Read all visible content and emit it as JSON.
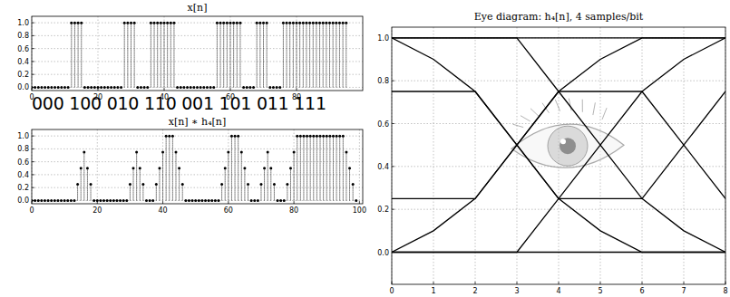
{
  "chart_data": [
    {
      "type": "stem",
      "title": "x[n]",
      "annotation": "000 100 010 110 001 101 011 111",
      "x": [
        0,
        1,
        2,
        3,
        4,
        5,
        6,
        7,
        8,
        9,
        10,
        11,
        12,
        13,
        14,
        15,
        16,
        17,
        18,
        19,
        20,
        21,
        22,
        23,
        24,
        25,
        26,
        27,
        28,
        29,
        30,
        31,
        32,
        33,
        34,
        35,
        36,
        37,
        38,
        39,
        40,
        41,
        42,
        43,
        44,
        45,
        46,
        47,
        48,
        49,
        50,
        51,
        52,
        53,
        54,
        55,
        56,
        57,
        58,
        59,
        60,
        61,
        62,
        63,
        64,
        65,
        66,
        67,
        68,
        69,
        70,
        71,
        72,
        73,
        74,
        75,
        76,
        77,
        78,
        79,
        80,
        81,
        82,
        83,
        84,
        85,
        86,
        87,
        88,
        89,
        90,
        91,
        92,
        93,
        94,
        95
      ],
      "values": [
        0,
        0,
        0,
        0,
        0,
        0,
        0,
        0,
        0,
        0,
        0,
        0,
        1,
        1,
        1,
        1,
        0,
        0,
        0,
        0,
        0,
        0,
        0,
        0,
        0,
        0,
        0,
        0,
        1,
        1,
        1,
        1,
        0,
        0,
        0,
        0,
        1,
        1,
        1,
        1,
        1,
        1,
        1,
        1,
        0,
        0,
        0,
        0,
        0,
        0,
        0,
        0,
        0,
        0,
        0,
        0,
        1,
        1,
        1,
        1,
        1,
        1,
        1,
        1,
        0,
        0,
        0,
        0,
        1,
        1,
        1,
        1,
        0,
        0,
        0,
        0,
        1,
        1,
        1,
        1,
        1,
        1,
        1,
        1,
        1,
        1,
        1,
        1,
        1,
        1,
        1,
        1,
        1,
        1,
        1,
        1
      ],
      "color": "#000000",
      "marker": "o",
      "line_style": "dotted",
      "grid": true,
      "xlim": [
        0,
        100
      ],
      "xticks": [
        0,
        20,
        40,
        60,
        80
      ],
      "ylim": [
        -0.05,
        1.1
      ],
      "yticks": [
        {
          "value": 0,
          "label": "0.0"
        },
        {
          "value": 0.2,
          "label": "0.2"
        },
        {
          "value": 0.4,
          "label": "0.4"
        },
        {
          "value": 0.6,
          "label": "0.6"
        },
        {
          "value": 0.8,
          "label": "0.8"
        },
        {
          "value": 1,
          "label": "1.0"
        }
      ]
    },
    {
      "type": "stem",
      "title": "x[n] ∗ h₄[n]",
      "x": [
        0,
        1,
        2,
        3,
        4,
        5,
        6,
        7,
        8,
        9,
        10,
        11,
        12,
        13,
        14,
        15,
        16,
        17,
        18,
        19,
        20,
        21,
        22,
        23,
        24,
        25,
        26,
        27,
        28,
        29,
        30,
        31,
        32,
        33,
        34,
        35,
        36,
        37,
        38,
        39,
        40,
        41,
        42,
        43,
        44,
        45,
        46,
        47,
        48,
        49,
        50,
        51,
        52,
        53,
        54,
        55,
        56,
        57,
        58,
        59,
        60,
        61,
        62,
        63,
        64,
        65,
        66,
        67,
        68,
        69,
        70,
        71,
        72,
        73,
        74,
        75,
        76,
        77,
        78,
        79,
        80,
        81,
        82,
        83,
        84,
        85,
        86,
        87,
        88,
        89,
        90,
        91,
        92,
        93,
        94,
        95,
        96,
        97,
        98,
        99
      ],
      "values": [
        0,
        0,
        0,
        0,
        0,
        0,
        0,
        0,
        0,
        0,
        0,
        0,
        0,
        0,
        0.25,
        0.5,
        0.75,
        0.5,
        0.25,
        0,
        0,
        0,
        0,
        0,
        0,
        0,
        0,
        0,
        0,
        0,
        0.25,
        0.5,
        0.75,
        0.5,
        0.25,
        0,
        0,
        0,
        0.25,
        0.5,
        0.75,
        1,
        1,
        1,
        0.75,
        0.5,
        0.25,
        0,
        0,
        0,
        0,
        0,
        0,
        0,
        0,
        0,
        0,
        0,
        0.25,
        0.5,
        0.75,
        1,
        1,
        1,
        0.75,
        0.5,
        0.25,
        0,
        0,
        0,
        0.25,
        0.5,
        0.75,
        0.5,
        0.25,
        0,
        0,
        0,
        0.25,
        0.5,
        0.75,
        1,
        1,
        1,
        1,
        1,
        1,
        1,
        1,
        1,
        1,
        1,
        1,
        1,
        1,
        1,
        0.75,
        0.5,
        0.25,
        0
      ],
      "color": "#000000",
      "marker": "o",
      "line_style": "dotted",
      "grid": true,
      "xlim": [
        0,
        101
      ],
      "xticks": [
        0,
        20,
        40,
        60,
        80,
        100
      ],
      "ylim": [
        -0.05,
        1.1
      ],
      "yticks": [
        {
          "value": 0,
          "label": "0.0"
        },
        {
          "value": 0.2,
          "label": "0.2"
        },
        {
          "value": 0.4,
          "label": "0.4"
        },
        {
          "value": 0.6,
          "label": "0.6"
        },
        {
          "value": 0.8,
          "label": "0.8"
        },
        {
          "value": 1,
          "label": "1.0"
        }
      ]
    },
    {
      "type": "line",
      "title": "Eye diagram: h₄[n], 4 samples/bit",
      "grid": true,
      "x": [
        0,
        1,
        2,
        3,
        4,
        5,
        6,
        7,
        8
      ],
      "series": [
        {
          "color": "#000000",
          "values": [
            1,
            1,
            1,
            1,
            1,
            1,
            1,
            1,
            1
          ]
        },
        {
          "color": "#000000",
          "values": [
            0,
            0,
            0,
            0,
            0,
            0,
            0,
            0,
            0
          ]
        },
        {
          "color": "#000000",
          "values": [
            1,
            0.9,
            0.75,
            0.5,
            0.25,
            0.1,
            0,
            0,
            0
          ]
        },
        {
          "color": "#000000",
          "values": [
            0,
            0.1,
            0.25,
            0.5,
            0.75,
            0.9,
            1,
            1,
            1
          ]
        },
        {
          "color": "#000000",
          "values": [
            0.75,
            0.75,
            0.75,
            0.5,
            0.25,
            0.25,
            0.25,
            0.5,
            0.75
          ]
        },
        {
          "color": "#000000",
          "values": [
            0.25,
            0.25,
            0.25,
            0.5,
            0.75,
            0.75,
            0.75,
            0.5,
            0.25
          ]
        },
        {
          "color": "#000000",
          "values": [
            0,
            0,
            0,
            0,
            0.25,
            0.5,
            0.75,
            0.9,
            1
          ]
        },
        {
          "color": "#000000",
          "values": [
            1,
            1,
            1,
            1,
            0.75,
            0.5,
            0.25,
            0.1,
            0
          ]
        }
      ],
      "xlim": [
        0,
        8
      ],
      "xticks": [
        0,
        1,
        2,
        3,
        4,
        5,
        6,
        7,
        8
      ],
      "ylim": [
        -0.15,
        1.05
      ],
      "yticks": [
        {
          "value": 0,
          "label": "0.0"
        },
        {
          "value": 0.2,
          "label": "0.2"
        },
        {
          "value": 0.4,
          "label": "0.4"
        },
        {
          "value": 0.6,
          "label": "0.6"
        },
        {
          "value": 0.8,
          "label": "0.8"
        },
        {
          "value": 1,
          "label": "1.0"
        }
      ]
    }
  ]
}
